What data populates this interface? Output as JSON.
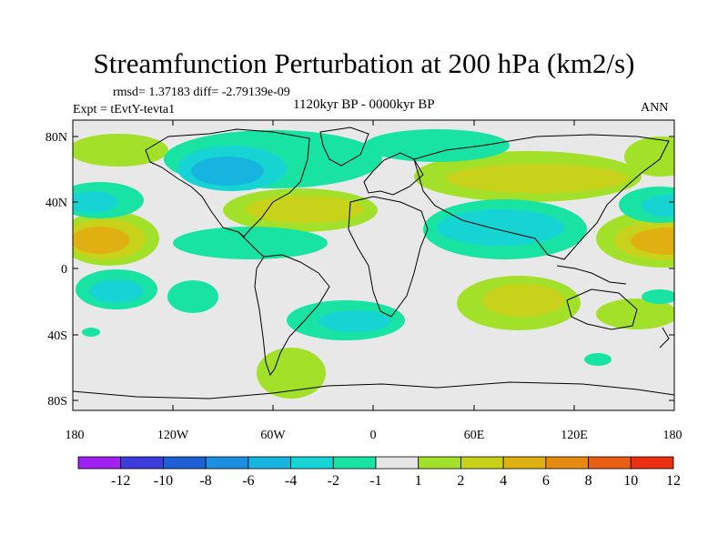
{
  "title": "Streamfunction Perturbation at 200 hPa (km2/s)",
  "stats": "rmsd= 1.37183 diff= -2.79139e-09",
  "period": "1120kyr BP - 0000kyr BP",
  "experiment": "Expt = tEvtY-tevta1",
  "season": "ANN",
  "lat_ticks": [
    "80N",
    "40N",
    "0",
    "40S",
    "80S"
  ],
  "lon_ticks": [
    "180",
    "120W",
    "60W",
    "0",
    "60E",
    "120E",
    "180"
  ],
  "colorbar": {
    "labels": [
      "-12",
      "-10",
      "-8",
      "-6",
      "-4",
      "-2",
      "-1",
      "1",
      "2",
      "4",
      "6",
      "8",
      "10",
      "12"
    ],
    "colors": [
      "#a020f0",
      "#3d3ddb",
      "#1f5fd6",
      "#1c8fe0",
      "#18b4e0",
      "#17d4d4",
      "#18e3a3",
      "#e6e6e6",
      "#a3e02a",
      "#c9d21a",
      "#e0b012",
      "#e68a12",
      "#e85e12",
      "#ea2f12"
    ]
  }
}
